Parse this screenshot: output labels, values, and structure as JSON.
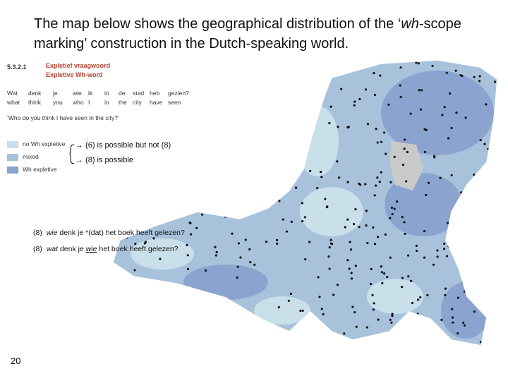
{
  "title": [
    "The map below shows the geographical distribution of the ‘",
    "wh",
    "-scope marking’ construction in the Dutch-speaking world."
  ],
  "atlas": {
    "section": "5.3.2.1",
    "heading": "Expletief vraagwoord",
    "subheading": "Expletive Wh-word",
    "gloss_dutch": [
      "Wat",
      "denk",
      "je",
      "wie",
      "ik",
      "in",
      "de",
      "stad",
      "heb",
      "gezien?"
    ],
    "gloss_english": [
      "what",
      "think",
      "you",
      "who",
      "I",
      "in",
      "the",
      "city",
      "have",
      "seen"
    ],
    "translation": "‘Who do you think I have seen in the city?’",
    "legend": [
      {
        "label": "no Wh expletive",
        "color": "#c9dfe9"
      },
      {
        "label": "mixed",
        "color": "#a8c2dc"
      },
      {
        "label": "Wh expletive",
        "color": "#8aa3cf"
      }
    ]
  },
  "annotations": [
    "→ (6) is possible but not (8)",
    "→ (8) is possible"
  ],
  "examples": [
    [
      "(8)",
      "wie",
      " denk je *(dat) het boek heeft gelezen?"
    ],
    [
      "(8)",
      "wat",
      " denk je ",
      "wie",
      " het boek heeft gelezen?"
    ]
  ],
  "page_number": "20"
}
